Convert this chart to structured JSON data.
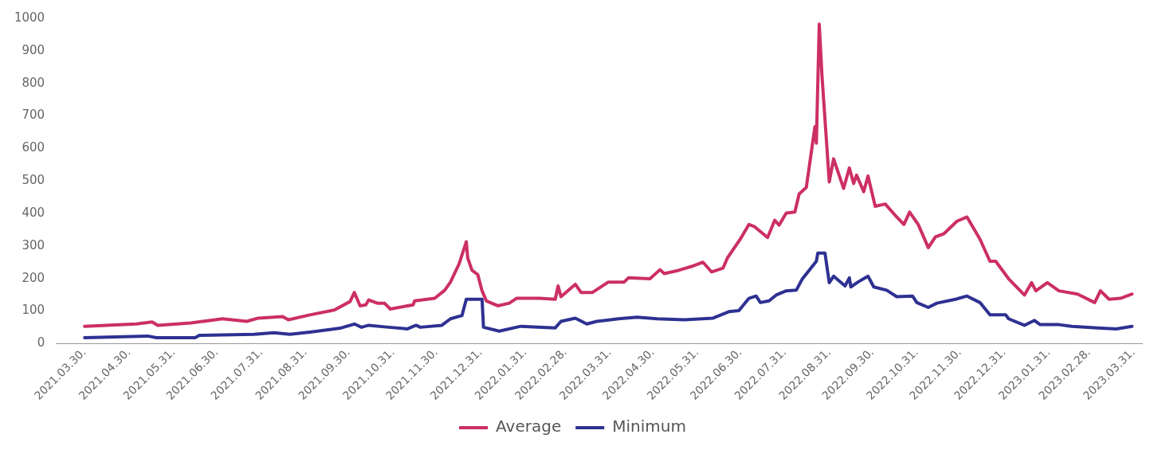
{
  "chart_data": {
    "type": "line",
    "legend": "bottom",
    "marker": "none",
    "line_style": "solid",
    "xlim": [
      "2021-03-10",
      "2023-04-06"
    ],
    "ylim": [
      0,
      1000
    ],
    "yticks": [
      0,
      100,
      200,
      300,
      400,
      500,
      600,
      700,
      800,
      900,
      1000
    ],
    "xticks": [
      {
        "value": "2021-03-30",
        "label": "2021.03.30."
      },
      {
        "value": "2021-04-30",
        "label": "2021.04.30."
      },
      {
        "value": "2021-05-31",
        "label": "2021.05.31."
      },
      {
        "value": "2021-06-30",
        "label": "2021.06.30."
      },
      {
        "value": "2021-07-31",
        "label": "2021.07.31."
      },
      {
        "value": "2021-08-31",
        "label": "2021.08.31."
      },
      {
        "value": "2021-09-30",
        "label": "2021.09.30."
      },
      {
        "value": "2021-10-31",
        "label": "2021.10.31."
      },
      {
        "value": "2021-11-30",
        "label": "2021.11.30."
      },
      {
        "value": "2021-12-31",
        "label": "2021.12.31."
      },
      {
        "value": "2022-01-31",
        "label": "2022.01.31."
      },
      {
        "value": "2022-02-28",
        "label": "2022.02.28."
      },
      {
        "value": "2022-03-31",
        "label": "2022.03.31."
      },
      {
        "value": "2022-04-30",
        "label": "2022.04.30."
      },
      {
        "value": "2022-05-31",
        "label": "2022.05.31."
      },
      {
        "value": "2022-06-30",
        "label": "2022.06.30."
      },
      {
        "value": "2022-07-31",
        "label": "2022.07.31."
      },
      {
        "value": "2022-08-31",
        "label": "2022.08.31."
      },
      {
        "value": "2022-09-30",
        "label": "2022.09.30."
      },
      {
        "value": "2022-10-31",
        "label": "2022.10.31."
      },
      {
        "value": "2022-11-30",
        "label": "2022.11.30."
      },
      {
        "value": "2022-12-31",
        "label": "2022.12.31."
      },
      {
        "value": "2023-01-31",
        "label": "2023.01.31."
      },
      {
        "value": "2023-02-28",
        "label": "2023.02.28."
      },
      {
        "value": "2023-03-31",
        "label": "2023.03.31."
      }
    ],
    "series": [
      {
        "name": "Average",
        "color": "#cc2f63",
        "x": [
          "2021-03-30",
          "2021-05-05",
          "2021-05-16",
          "2021-05-20",
          "2021-06-12",
          "2021-06-29",
          "2021-07-04",
          "2021-07-21",
          "2021-07-29",
          "2021-08-15",
          "2021-08-19",
          "2021-09-03",
          "2021-09-20",
          "2021-10-01",
          "2021-10-04",
          "2021-10-08",
          "2021-10-12",
          "2021-10-14",
          "2021-10-20",
          "2021-10-25",
          "2021-10-29",
          "2021-11-14",
          "2021-11-15",
          "2021-11-29",
          "2021-12-06",
          "2021-12-10",
          "2021-12-16",
          "2021-12-21",
          "2021-12-22",
          "2021-12-25",
          "2021-12-29",
          "2022-01-01",
          "2022-01-04",
          "2022-01-12",
          "2022-01-20",
          "2022-01-25",
          "2022-02-10",
          "2022-02-21",
          "2022-02-23",
          "2022-02-25",
          "2022-03-07",
          "2022-03-11",
          "2022-03-19",
          "2022-03-30",
          "2022-04-10",
          "2022-04-13",
          "2022-04-28",
          "2022-05-05",
          "2022-05-08",
          "2022-05-18",
          "2022-05-27",
          "2022-06-04",
          "2022-06-10",
          "2022-06-18",
          "2022-06-21",
          "2022-06-30",
          "2022-07-06",
          "2022-07-10",
          "2022-07-19",
          "2022-07-24",
          "2022-07-27",
          "2022-08-01",
          "2022-08-07",
          "2022-08-10",
          "2022-08-15",
          "2022-08-21",
          "2022-08-22",
          "2022-08-24",
          "2022-08-26",
          "2022-08-31",
          "2022-09-03",
          "2022-09-10",
          "2022-09-14",
          "2022-09-17",
          "2022-09-19",
          "2022-09-24",
          "2022-09-27",
          "2022-10-02",
          "2022-10-09",
          "2022-10-17",
          "2022-10-22",
          "2022-10-26",
          "2022-11-01",
          "2022-11-08",
          "2022-11-13",
          "2022-11-19",
          "2022-11-28",
          "2022-12-05",
          "2022-12-14",
          "2022-12-21",
          "2022-12-25",
          "2023-01-03",
          "2023-01-14",
          "2023-01-19",
          "2023-01-22",
          "2023-01-30",
          "2023-02-07",
          "2023-02-20",
          "2023-03-04",
          "2023-03-08",
          "2023-03-14",
          "2023-03-22",
          "2023-03-30"
        ],
        "values": [
          53,
          60,
          66,
          56,
          63,
          73,
          76,
          68,
          78,
          83,
          73,
          88,
          103,
          129,
          157,
          116,
          119,
          134,
          124,
          124,
          106,
          119,
          131,
          139,
          164,
          189,
          245,
          313,
          263,
          225,
          212,
          162,
          131,
          116,
          124,
          139,
          139,
          136,
          177,
          144,
          182,
          157,
          157,
          189,
          189,
          202,
          199,
          227,
          215,
          225,
          237,
          250,
          220,
          232,
          263,
          321,
          366,
          359,
          326,
          379,
          364,
          401,
          404,
          460,
          480,
          667,
          616,
          982,
          818,
          497,
          568,
          477,
          540,
          492,
          518,
          467,
          515,
          422,
          429,
          389,
          366,
          404,
          366,
          295,
          328,
          338,
          376,
          389,
          321,
          253,
          253,
          199,
          149,
          187,
          162,
          187,
          162,
          152,
          126,
          162,
          136,
          139,
          152
        ]
      },
      {
        "name": "Minimum",
        "color": "#2e3192",
        "x": [
          "2021-03-30",
          "2021-05-13",
          "2021-05-19",
          "2021-06-15",
          "2021-06-18",
          "2021-07-26",
          "2021-08-09",
          "2021-08-20",
          "2021-09-03",
          "2021-09-17",
          "2021-09-25",
          "2021-10-04",
          "2021-10-09",
          "2021-10-14",
          "2021-10-28",
          "2021-11-10",
          "2021-11-16",
          "2021-11-19",
          "2021-12-04",
          "2021-12-10",
          "2021-12-18",
          "2021-12-21",
          "2022-01-01",
          "2022-01-02",
          "2022-01-13",
          "2022-01-28",
          "2022-02-21",
          "2022-02-25",
          "2022-03-07",
          "2022-03-15",
          "2022-03-22",
          "2022-04-06",
          "2022-04-19",
          "2022-05-03",
          "2022-05-22",
          "2022-06-11",
          "2022-06-22",
          "2022-06-29",
          "2022-07-06",
          "2022-07-11",
          "2022-07-14",
          "2022-07-20",
          "2022-07-25",
          "2022-08-01",
          "2022-08-08",
          "2022-08-12",
          "2022-08-22",
          "2022-08-23",
          "2022-08-28",
          "2022-08-31",
          "2022-09-03",
          "2022-09-11",
          "2022-09-14",
          "2022-09-15",
          "2022-09-20",
          "2022-09-27",
          "2022-10-01",
          "2022-10-10",
          "2022-10-17",
          "2022-10-28",
          "2022-10-31",
          "2022-11-08",
          "2022-11-14",
          "2022-11-27",
          "2022-12-05",
          "2022-12-14",
          "2022-12-21",
          "2023-01-01",
          "2023-01-03",
          "2023-01-14",
          "2023-01-21",
          "2023-01-25",
          "2023-02-07",
          "2023-02-16",
          "2023-03-06",
          "2023-03-19",
          "2023-03-30"
        ],
        "values": [
          18,
          23,
          18,
          18,
          25,
          28,
          33,
          28,
          35,
          43,
          48,
          60,
          50,
          56,
          50,
          45,
          56,
          50,
          56,
          76,
          86,
          136,
          136,
          50,
          38,
          53,
          48,
          68,
          78,
          60,
          68,
          76,
          81,
          76,
          73,
          78,
          98,
          101,
          139,
          146,
          126,
          131,
          149,
          162,
          164,
          197,
          253,
          278,
          278,
          187,
          207,
          177,
          202,
          174,
          189,
          207,
          174,
          164,
          144,
          146,
          126,
          111,
          124,
          136,
          146,
          126,
          88,
          88,
          76,
          56,
          71,
          58,
          58,
          53,
          48,
          45,
          53
        ]
      }
    ]
  }
}
